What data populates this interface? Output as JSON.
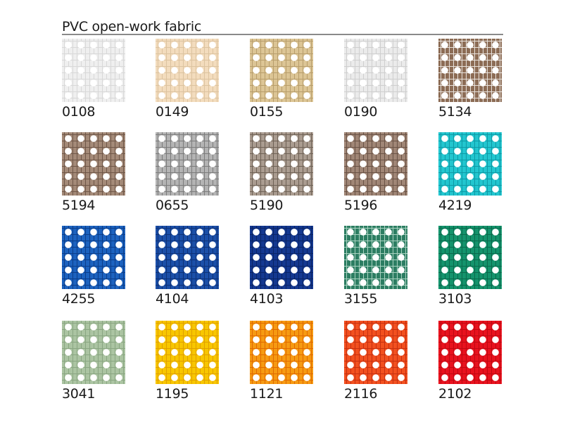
{
  "title": "PVC open-work fabric",
  "swatches": [
    {
      "code": "0108",
      "color": "#efefef",
      "shade": "#d8d8d8"
    },
    {
      "code": "0149",
      "color": "#f3dcbd",
      "shade": "#dcc3a0"
    },
    {
      "code": "0155",
      "color": "#dcc595",
      "shade": "#b89e6c"
    },
    {
      "code": "0190",
      "color": "#ebebeb",
      "shade": "#cfcfcf"
    },
    {
      "code": "5134",
      "color": "#8c6c55",
      "shade": "#e8e2dc"
    },
    {
      "code": "5194",
      "color": "#a48a78",
      "shade": "#6f5748"
    },
    {
      "code": "0655",
      "color": "#b4b4b4",
      "shade": "#7c7c7c"
    },
    {
      "code": "5190",
      "color": "#aa9c90",
      "shade": "#6f6256"
    },
    {
      "code": "5196",
      "color": "#a08676",
      "shade": "#6a5346"
    },
    {
      "code": "4219",
      "color": "#22c6cf",
      "shade": "#0e9aa6"
    },
    {
      "code": "4255",
      "color": "#1c62bf",
      "shade": "#0c3e8a"
    },
    {
      "code": "4104",
      "color": "#1b4fa8",
      "shade": "#0e3278"
    },
    {
      "code": "4103",
      "color": "#143890",
      "shade": "#0a2466"
    },
    {
      "code": "3155",
      "color": "#2c7d62",
      "shade": "#a8d2c0"
    },
    {
      "code": "3103",
      "color": "#14936c",
      "shade": "#0a6a4c"
    },
    {
      "code": "3041",
      "color": "#abc4a2",
      "shade": "#8aa682"
    },
    {
      "code": "1195",
      "color": "#f8c600",
      "shade": "#e0a000"
    },
    {
      "code": "1121",
      "color": "#f69a12",
      "shade": "#e06a00"
    },
    {
      "code": "2116",
      "color": "#f2501f",
      "shade": "#c73010"
    },
    {
      "code": "2102",
      "color": "#e8121e",
      "shade": "#c00812"
    }
  ]
}
